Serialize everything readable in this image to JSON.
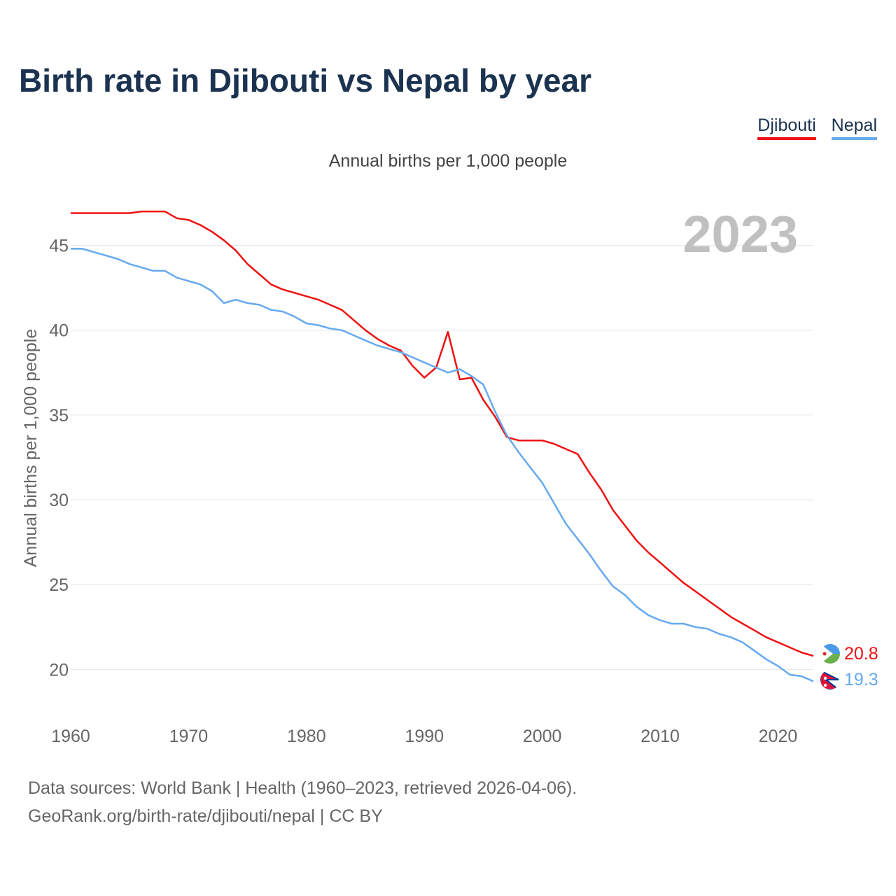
{
  "title": "Birth rate in Djibouti vs Nepal by year",
  "subtitle": "Annual births per 1,000 people",
  "footer": {
    "line1": "Data sources: World Bank | Health (1960–2023, retrieved 2026-04-06).",
    "line2": "GeoRank.org/birth-rate/djibouti/nepal | CC BY"
  },
  "colors": {
    "djibouti": "#ee1111",
    "nepal": "#66aaee",
    "grid": "#e6e6e6",
    "axis_text": "#666666",
    "year_watermark": "#c0c0c0"
  },
  "chart_data": {
    "type": "line",
    "title": "Birth rate in Djibouti vs Nepal by year",
    "ylabel": "Annual births per 1,000 people",
    "xlabel": "",
    "year_label": "2023",
    "xlim": [
      1960,
      2023
    ],
    "ylim": [
      18.2,
      47.5
    ],
    "x_ticks": [
      1960,
      1970,
      1980,
      1990,
      2000,
      2010,
      2020
    ],
    "y_ticks": [
      20,
      25,
      30,
      35,
      40,
      45
    ],
    "legend_position": "top-right",
    "x": [
      1960,
      1961,
      1962,
      1963,
      1964,
      1965,
      1966,
      1967,
      1968,
      1969,
      1970,
      1971,
      1972,
      1973,
      1974,
      1975,
      1976,
      1977,
      1978,
      1979,
      1980,
      1981,
      1982,
      1983,
      1984,
      1985,
      1986,
      1987,
      1988,
      1989,
      1990,
      1991,
      1992,
      1993,
      1994,
      1995,
      1996,
      1997,
      1998,
      1999,
      2000,
      2001,
      2002,
      2003,
      2004,
      2005,
      2006,
      2007,
      2008,
      2009,
      2010,
      2011,
      2012,
      2013,
      2014,
      2015,
      2016,
      2017,
      2018,
      2019,
      2020,
      2021,
      2022,
      2023
    ],
    "series": [
      {
        "name": "Djibouti",
        "color": "#ee1111",
        "end_label": "20.8",
        "values": [
          46.9,
          46.9,
          46.9,
          46.9,
          46.9,
          46.9,
          47.0,
          47.0,
          47.0,
          46.6,
          46.5,
          46.2,
          45.8,
          45.3,
          44.7,
          43.9,
          43.3,
          42.7,
          42.4,
          42.2,
          42.0,
          41.8,
          41.5,
          41.2,
          40.6,
          40.0,
          39.5,
          39.1,
          38.8,
          37.9,
          37.2,
          37.8,
          39.9,
          37.1,
          37.2,
          35.9,
          34.9,
          33.7,
          33.5,
          33.5,
          33.5,
          33.3,
          33.0,
          32.7,
          31.6,
          30.6,
          29.4,
          28.5,
          27.6,
          26.9,
          26.3,
          25.7,
          25.1,
          24.6,
          24.1,
          23.6,
          23.1,
          22.7,
          22.3,
          21.9,
          21.6,
          21.3,
          21.0,
          20.8
        ]
      },
      {
        "name": "Nepal",
        "color": "#66aaee",
        "end_label": "19.3",
        "values": [
          44.8,
          44.8,
          44.6,
          44.4,
          44.2,
          43.9,
          43.7,
          43.5,
          43.5,
          43.1,
          42.9,
          42.7,
          42.3,
          41.6,
          41.8,
          41.6,
          41.5,
          41.2,
          41.1,
          40.8,
          40.4,
          40.3,
          40.1,
          40.0,
          39.7,
          39.4,
          39.1,
          38.9,
          38.7,
          38.4,
          38.1,
          37.8,
          37.5,
          37.7,
          37.3,
          36.8,
          35.2,
          33.8,
          32.8,
          31.9,
          31.0,
          29.8,
          28.6,
          27.7,
          26.8,
          25.8,
          24.9,
          24.4,
          23.7,
          23.2,
          22.9,
          22.7,
          22.7,
          22.5,
          22.4,
          22.1,
          21.9,
          21.6,
          21.1,
          20.6,
          20.2,
          19.7,
          19.6,
          19.3
        ]
      }
    ]
  }
}
